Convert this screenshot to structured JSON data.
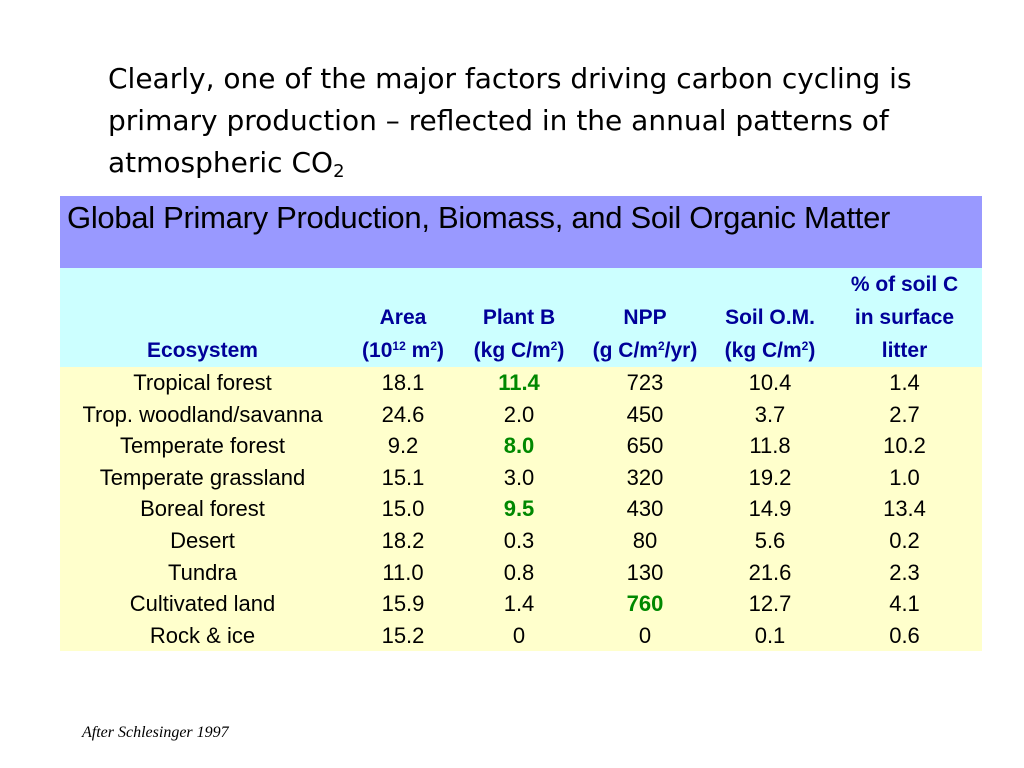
{
  "intro": {
    "text": "Clearly, one of the major factors driving carbon cycling is primary production – reflected in the annual patterns of atmospheric CO",
    "subscript": "2"
  },
  "table": {
    "title": "Global Primary Production, Biomass, and Soil Organic Matter",
    "header": {
      "ecosystem": "Ecosystem",
      "area": {
        "name": "Area",
        "unit_pre": "(10",
        "unit_sup": "12",
        "unit_mid": " m",
        "unit_sup2": "2",
        "unit_post": ")"
      },
      "plant_b": {
        "name": "Plant B",
        "unit_pre": "(kg C/m",
        "unit_sup": "2",
        "unit_post": ")"
      },
      "npp": {
        "name": "NPP",
        "unit_pre": "(g C/m",
        "unit_sup": "2",
        "unit_post": "/yr)"
      },
      "soil_om": {
        "name": "Soil O.M.",
        "unit_pre": "(kg C/m",
        "unit_sup": "2",
        "unit_post": ")"
      },
      "soil_c": {
        "line1": "% of soil C",
        "line2": "in surface",
        "line3": "litter"
      }
    },
    "rows": [
      {
        "ecosystem": "Tropical forest",
        "area": "18.1",
        "plant_b": "11.4",
        "npp": "723",
        "soil_om": "10.4",
        "soil_c": "1.4"
      },
      {
        "ecosystem": "Trop. woodland/savanna",
        "area": "24.6",
        "plant_b": "2.0",
        "npp": "450",
        "soil_om": "3.7",
        "soil_c": "2.7"
      },
      {
        "ecosystem": "Temperate forest",
        "area": "9.2",
        "plant_b": "8.0",
        "npp": "650",
        "soil_om": "11.8",
        "soil_c": "10.2"
      },
      {
        "ecosystem": "Temperate grassland",
        "area": "15.1",
        "plant_b": "3.0",
        "npp": "320",
        "soil_om": "19.2",
        "soil_c": "1.0"
      },
      {
        "ecosystem": "Boreal forest",
        "area": "15.0",
        "plant_b": "9.5",
        "npp": "430",
        "soil_om": "14.9",
        "soil_c": "13.4"
      },
      {
        "ecosystem": "Desert",
        "area": "18.2",
        "plant_b": "0.3",
        "npp": "80",
        "soil_om": "5.6",
        "soil_c": "0.2"
      },
      {
        "ecosystem": "Tundra",
        "area": "11.0",
        "plant_b": "0.8",
        "npp": "130",
        "soil_om": "21.6",
        "soil_c": "2.3"
      },
      {
        "ecosystem": "Cultivated land",
        "area": "15.9",
        "plant_b": "1.4",
        "npp": "760",
        "soil_om": "12.7",
        "soil_c": "4.1"
      },
      {
        "ecosystem": "Rock & ice",
        "area": "15.2",
        "plant_b": "0",
        "npp": "0",
        "soil_om": "0.1",
        "soil_c": "0.6"
      }
    ],
    "highlight_color": "#008800"
  },
  "source": "After Schlesinger 1997",
  "colors": {
    "title_bg": "#9999ff",
    "header_bg": "#ccffff",
    "header_text": "#000099",
    "body_bg": "#ffffcc"
  }
}
